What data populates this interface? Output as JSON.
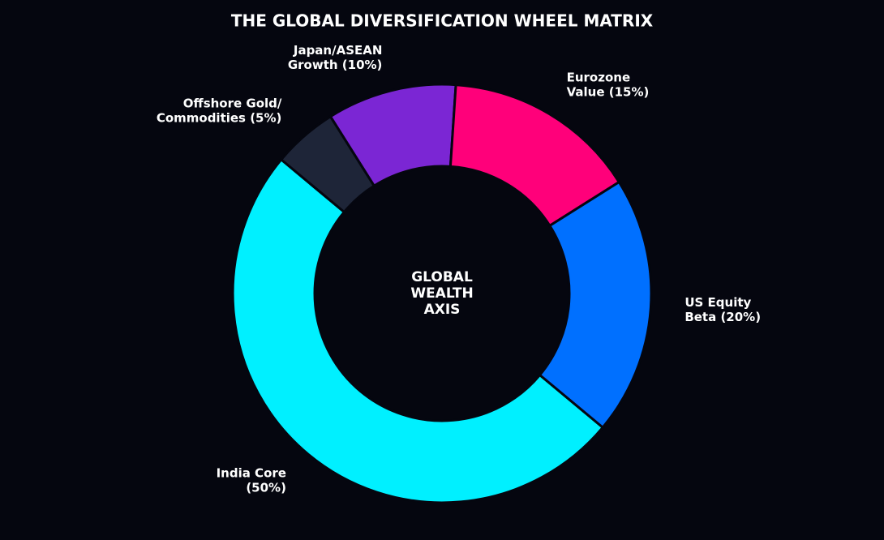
{
  "chart_data": {
    "type": "donut",
    "title": "THE GLOBAL DIVERSIFICATION WHEEL MATRIX",
    "center_label": "GLOBAL\nWEALTH\nAXIS",
    "categories": [
      "India Core\n(50%)",
      "Offshore Gold/\nCommodities (5%)",
      "Japan/ASEAN\nGrowth (10%)",
      "Eurozone\nValue (15%)",
      "US Equity\nBeta (20%)"
    ],
    "values": [
      50,
      5,
      10,
      15,
      20
    ],
    "colors": [
      "#00f0ff",
      "#1e2538",
      "#7b26d4",
      "#ff007a",
      "#0070ff"
    ]
  }
}
